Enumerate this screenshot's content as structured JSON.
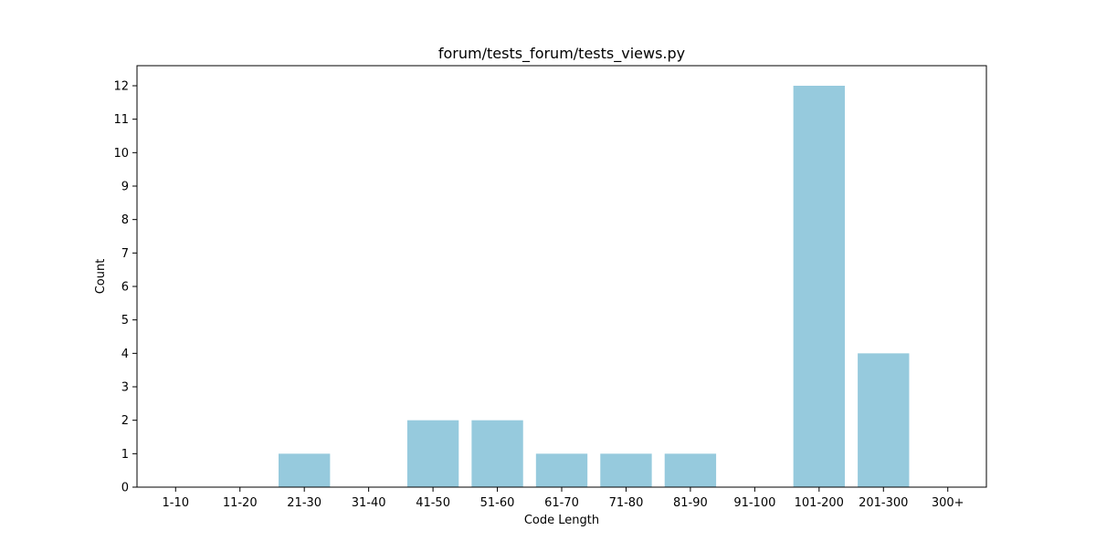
{
  "chart_data": {
    "type": "bar",
    "title": "forum/tests_forum/tests_views.py",
    "xlabel": "Code Length",
    "ylabel": "Count",
    "categories": [
      "1-10",
      "11-20",
      "21-30",
      "31-40",
      "41-50",
      "51-60",
      "61-70",
      "71-80",
      "81-90",
      "91-100",
      "101-200",
      "201-300",
      "300+"
    ],
    "values": [
      0,
      0,
      1,
      0,
      2,
      2,
      1,
      1,
      1,
      0,
      12,
      4,
      0
    ],
    "ylim": [
      0,
      12.6
    ],
    "yticks": [
      "0",
      "1",
      "2",
      "3",
      "4",
      "5",
      "6",
      "7",
      "8",
      "9",
      "10",
      "11",
      "12"
    ],
    "bar_color": "#96cadd",
    "grid": false,
    "legend": "none"
  }
}
